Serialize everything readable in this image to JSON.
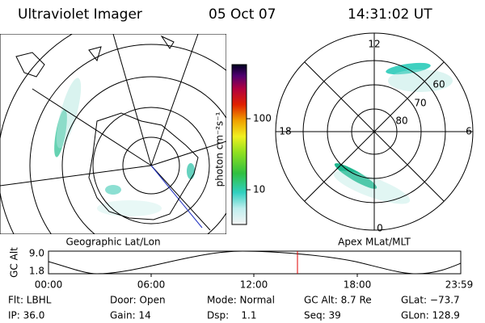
{
  "header": {
    "title": "Ultraviolet Imager",
    "date": "05 Oct 07",
    "time": "14:31:02 UT"
  },
  "left_panel": {
    "label": "Geographic Lat/Lon"
  },
  "right_panel": {
    "label": "Apex MLat/MLT",
    "mlt_labels": [
      "12",
      "18",
      "6",
      "0"
    ],
    "mlat_labels": [
      "60",
      "70",
      "80"
    ]
  },
  "colorbar": {
    "label": "photon cm⁻²s⁻¹",
    "ticks": [
      "100",
      "10"
    ]
  },
  "altitude_plot": {
    "ylabel": "GC Alt",
    "yticks": [
      "9.0",
      "1.8"
    ],
    "xticks": [
      "00:00",
      "06:00",
      "12:00",
      "18:00",
      "23:59"
    ]
  },
  "info": {
    "rows": [
      [
        "Flt: LBHL",
        "Door: Open",
        "Mode: Normal",
        "GC Alt: 8.7 Re",
        "GLat: −73.7"
      ],
      [
        "IP: 36.0",
        "Gain: 14",
        "Dsp:    1.1",
        "Seq: 39",
        "GLon: 128.9"
      ]
    ]
  }
}
